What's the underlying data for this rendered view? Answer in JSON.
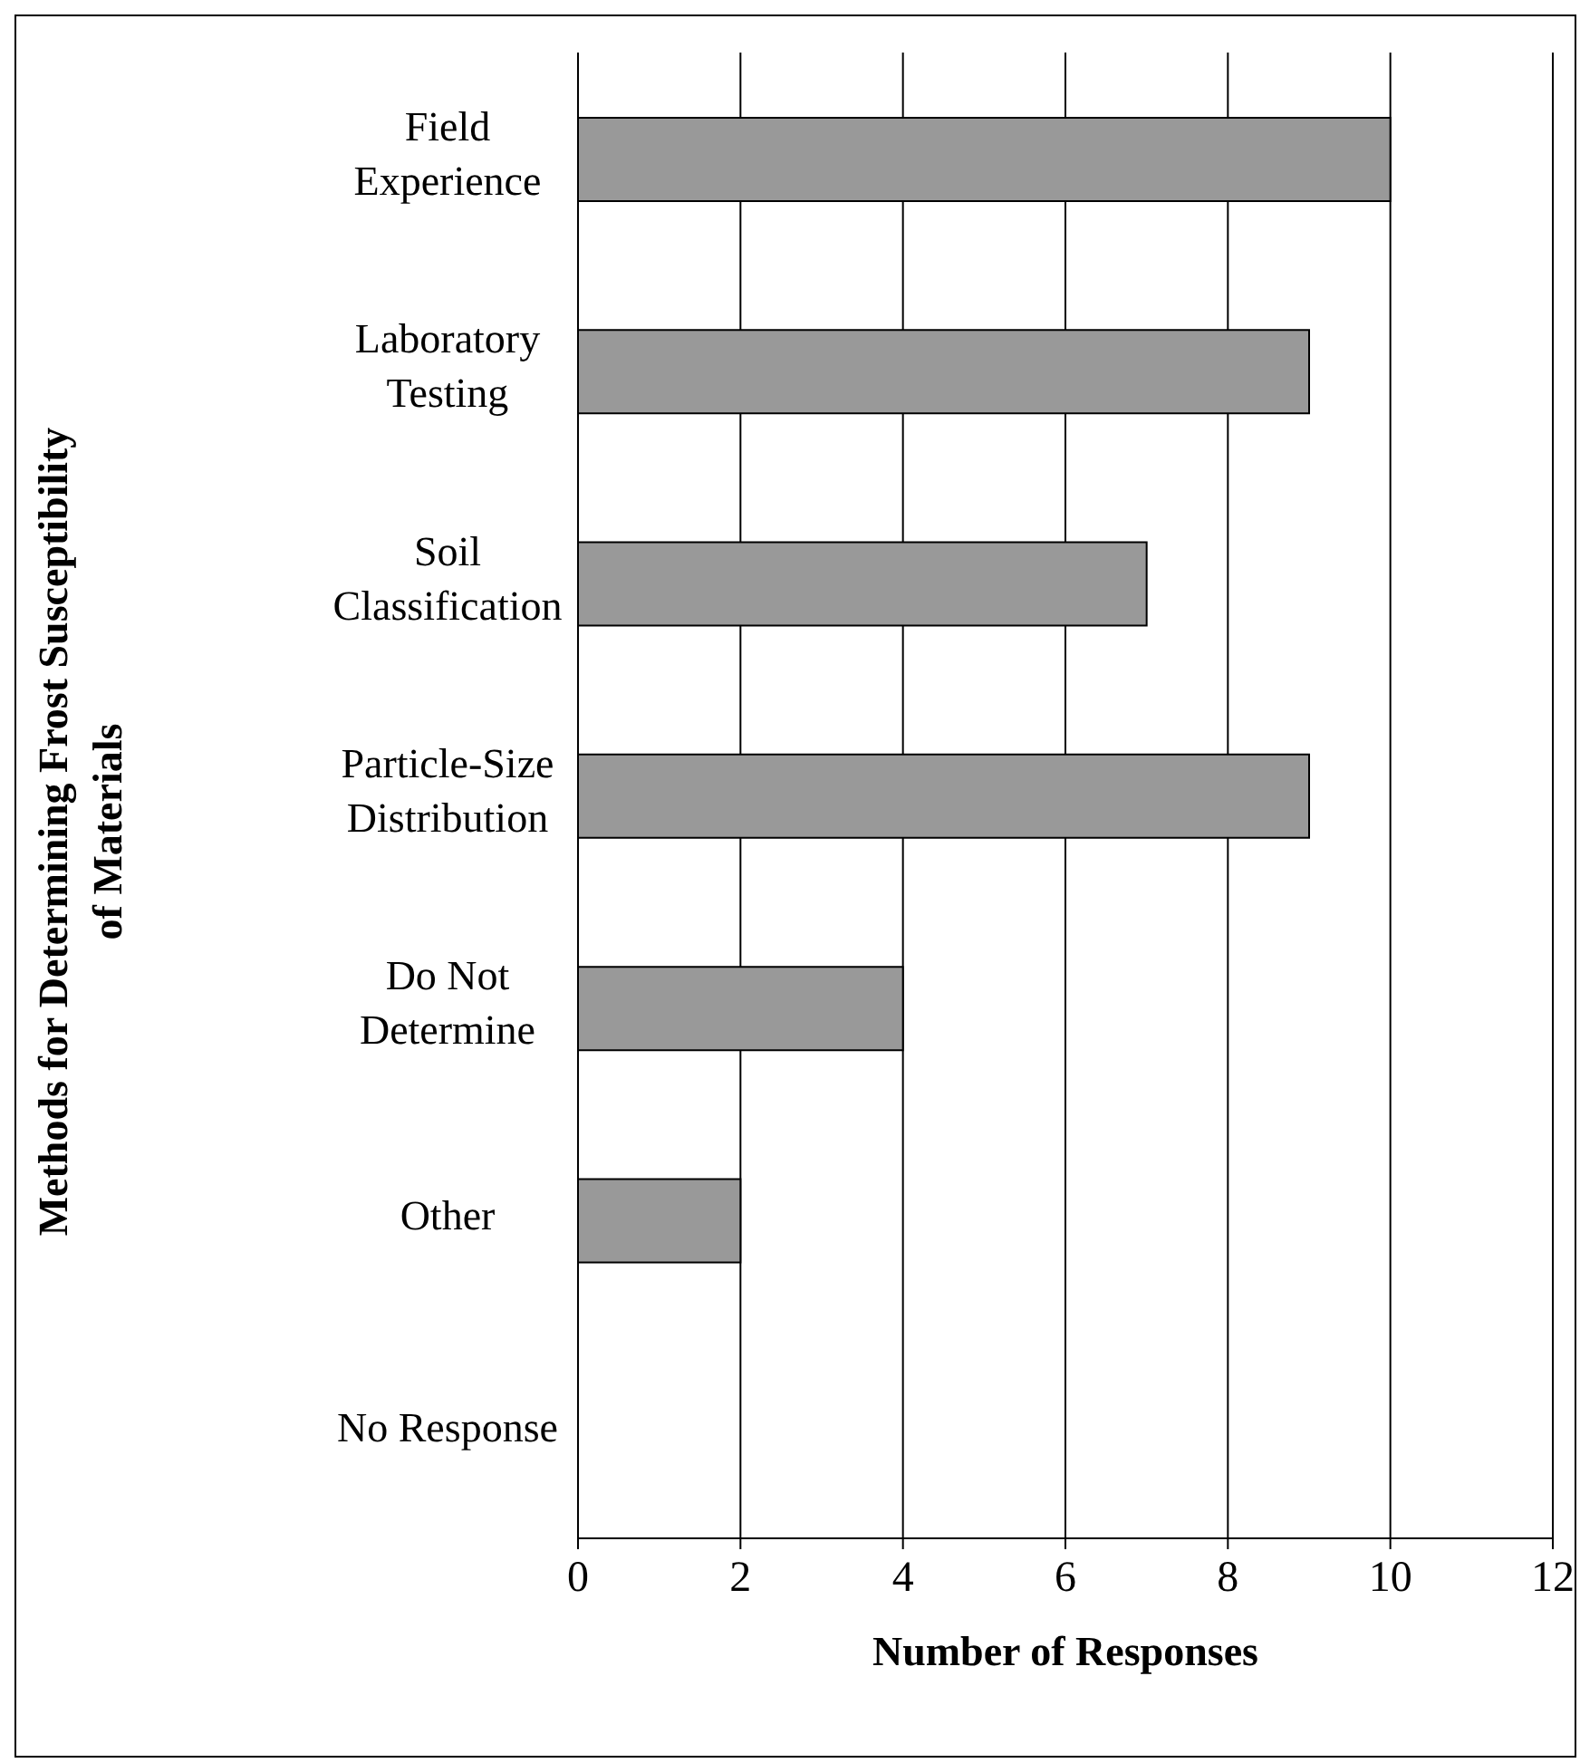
{
  "chart_data": {
    "type": "bar",
    "orientation": "horizontal",
    "xlabel": "Number of Responses",
    "ylabel": "Methods for Determining Frost Susceptibility\nof Materials",
    "categories": [
      "Field\nExperience",
      "Laboratory\nTesting",
      "Soil\nClassification",
      "Particle-Size\nDistribution",
      "Do Not\nDetermine",
      "Other",
      "No Response"
    ],
    "values": [
      10,
      9,
      7,
      9,
      4,
      2,
      0
    ],
    "color": "#999999",
    "xlim": [
      0,
      12
    ],
    "xticks": [
      0,
      2,
      4,
      6,
      8,
      10,
      12
    ],
    "grid": "x"
  }
}
